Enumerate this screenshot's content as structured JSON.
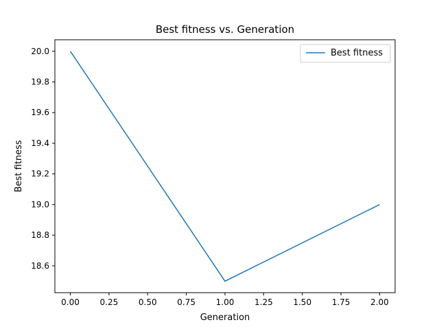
{
  "chart_data": {
    "type": "line",
    "title": "Best fitness vs. Generation",
    "xlabel": "Generation",
    "ylabel": "Best fitness",
    "xlim": [
      -0.1,
      2.1
    ],
    "ylim": [
      18.425,
      20.075
    ],
    "xticks": [
      "0.00",
      "0.25",
      "0.50",
      "0.75",
      "1.00",
      "1.25",
      "1.50",
      "1.75",
      "2.00"
    ],
    "yticks": [
      "18.6",
      "18.8",
      "19.0",
      "19.2",
      "19.4",
      "19.6",
      "19.8",
      "20.0"
    ],
    "grid": false,
    "legend": "top-right",
    "series": [
      {
        "name": "Best fitness",
        "color": "#1f77b4",
        "x": [
          0,
          1,
          2
        ],
        "y": [
          20.0,
          18.5,
          19.0
        ]
      }
    ]
  }
}
